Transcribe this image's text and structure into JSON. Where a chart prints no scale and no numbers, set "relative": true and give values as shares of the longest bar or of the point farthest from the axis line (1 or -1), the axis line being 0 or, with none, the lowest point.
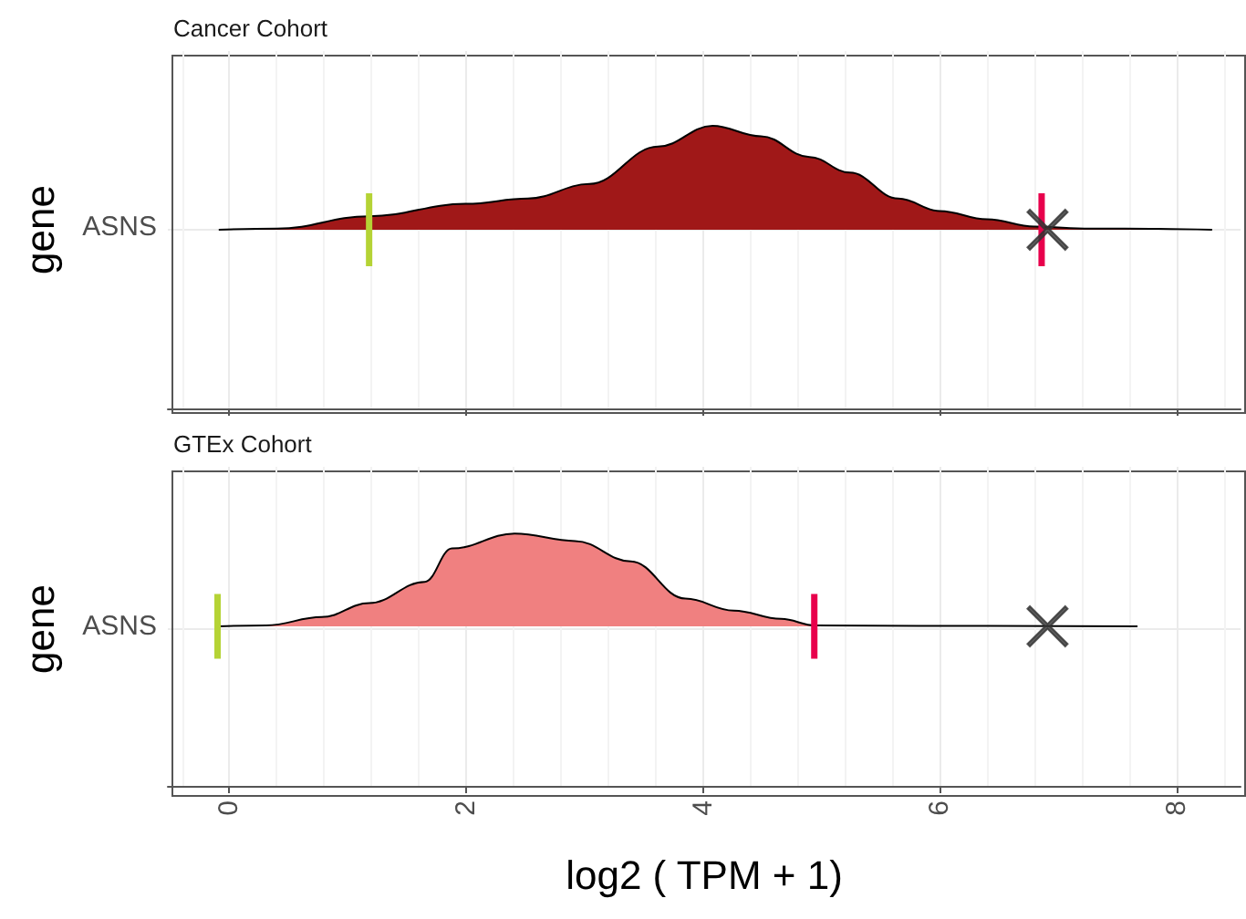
{
  "chart_data": [
    {
      "type": "area",
      "title": "Cancer Cohort",
      "ylabel": "gene",
      "annotations": [
        "ASNS"
      ],
      "relative": true,
      "xlim": [
        -0.52,
        8.54
      ],
      "xticks": [
        0,
        2,
        4,
        6,
        8
      ],
      "grid": "x",
      "tick_labels": false,
      "series": [
        {
          "color": "#a01818",
          "x": [
            -0.09,
            0.4,
            1.18,
            2.0,
            2.52,
            3.04,
            3.62,
            4.08,
            4.49,
            4.9,
            5.24,
            5.65,
            6.0,
            6.4,
            6.8,
            7.27,
            7.56,
            8.3
          ],
          "values": [
            0,
            0.01,
            0.13,
            0.25,
            0.3,
            0.44,
            0.8,
            1.0,
            0.9,
            0.7,
            0.55,
            0.3,
            0.18,
            0.1,
            0.03,
            0.01,
            0.01,
            0
          ]
        },
        {
          "type": "scatter",
          "color": "#333333",
          "marker": "cross",
          "x": [
            6.91
          ],
          "values": [
            0
          ]
        }
      ],
      "ref_lines": [
        {
          "axis": "x",
          "value": 1.18,
          "color": "#b5d335"
        },
        {
          "axis": "x",
          "value": 6.86,
          "color": "#e8004c"
        }
      ]
    },
    {
      "type": "area",
      "title": "GTEx Cohort",
      "ylabel": "gene",
      "xlabel": "log2 ( TPM + 1)",
      "annotations": [
        "ASNS"
      ],
      "relative": true,
      "xlim": [
        -0.52,
        8.54
      ],
      "xticks": [
        0,
        2,
        4,
        6,
        8
      ],
      "grid": "x",
      "tick_labels": "x",
      "series": [
        {
          "color": "#f08080",
          "x": [
            -0.09,
            0.31,
            0.78,
            1.18,
            1.65,
            1.88,
            2.41,
            2.92,
            3.39,
            3.85,
            4.26,
            4.66,
            4.95,
            5.82,
            7.67
          ],
          "values": [
            0,
            0.01,
            0.1,
            0.25,
            0.48,
            0.84,
            1.0,
            0.92,
            0.7,
            0.3,
            0.17,
            0.08,
            0.01,
            0.005,
            0
          ]
        },
        {
          "type": "scatter",
          "color": "#333333",
          "marker": "cross",
          "x": [
            6.91
          ],
          "values": [
            0
          ]
        }
      ],
      "ref_lines": [
        {
          "axis": "x",
          "value": -0.1,
          "color": "#b5d335"
        },
        {
          "axis": "x",
          "value": 4.94,
          "color": "#e8004c"
        }
      ]
    }
  ]
}
